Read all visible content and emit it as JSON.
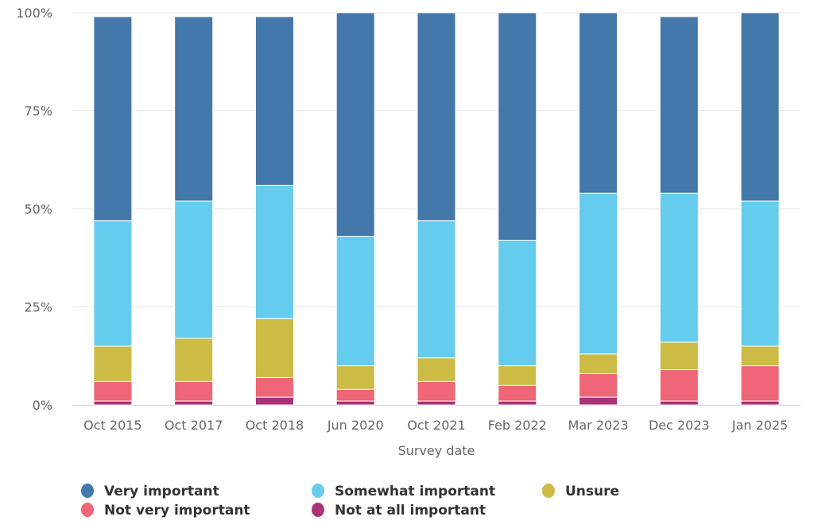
{
  "chart_data": {
    "type": "bar",
    "stacked": true,
    "percent": true,
    "title": "",
    "xlabel": "Survey date",
    "ylabel": "",
    "ylim": [
      0,
      100
    ],
    "y_ticks": [
      "0%",
      "25%",
      "50%",
      "75%",
      "100%"
    ],
    "y_tick_values": [
      0,
      25,
      50,
      75,
      100
    ],
    "grid": true,
    "legend_position": "bottom-left",
    "categories": [
      "Oct 2015",
      "Oct 2017",
      "Oct 2018",
      "Jun 2020",
      "Oct 2021",
      "Feb 2022",
      "Mar 2023",
      "Dec 2023",
      "Jan 2025"
    ],
    "series": [
      {
        "name": "Very important",
        "color": "#4477aa",
        "values": [
          52,
          47,
          43,
          57,
          53,
          58,
          46,
          45,
          48
        ]
      },
      {
        "name": "Somewhat important",
        "color": "#66ccee",
        "values": [
          32,
          35,
          34,
          33,
          35,
          32,
          41,
          38,
          37
        ]
      },
      {
        "name": "Unsure",
        "color": "#ccbb44",
        "values": [
          9,
          11,
          15,
          6,
          6,
          5,
          5,
          7,
          5
        ]
      },
      {
        "name": "Not very important",
        "color": "#ee6677",
        "values": [
          5,
          5,
          5,
          3,
          5,
          4,
          6,
          8,
          9
        ]
      },
      {
        "name": "Not at all important",
        "color": "#aa3377",
        "values": [
          1,
          1,
          2,
          1,
          1,
          1,
          2,
          1,
          1
        ]
      }
    ]
  }
}
